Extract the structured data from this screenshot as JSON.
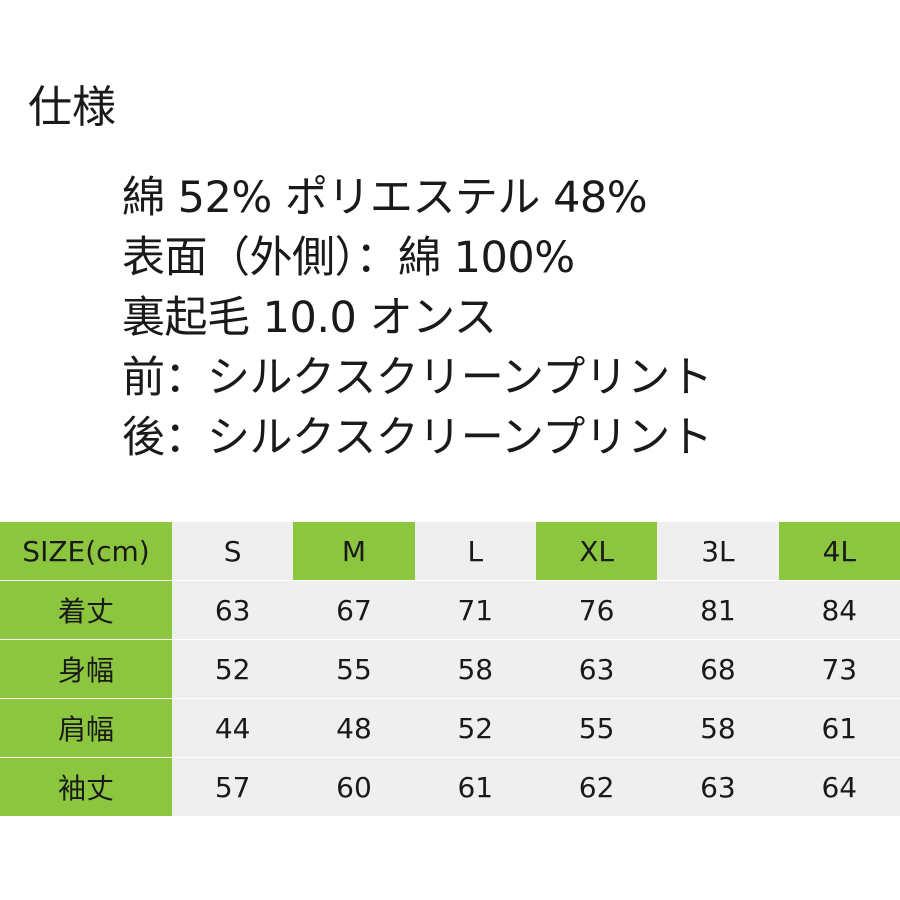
{
  "heading": "仕様",
  "specs": [
    "綿 52% ポリエステル 48%",
    "表面（外側）：綿 100%",
    "裏起毛 10.0 オンス",
    "前：シルクスクリーンプリント",
    "後：シルクスクリーンプリント"
  ],
  "colors": {
    "accent_green": "#8cc63f",
    "alt_gray": "#efefef"
  },
  "size_table": {
    "header_label": "SIZE(cm)",
    "sizes": [
      "S",
      "M",
      "L",
      "XL",
      "3L",
      "4L"
    ],
    "rows": [
      {
        "label": "着丈",
        "values": [
          "63",
          "67",
          "71",
          "76",
          "81",
          "84"
        ]
      },
      {
        "label": "身幅",
        "values": [
          "52",
          "55",
          "58",
          "63",
          "68",
          "73"
        ]
      },
      {
        "label": "肩幅",
        "values": [
          "44",
          "48",
          "52",
          "55",
          "58",
          "61"
        ]
      },
      {
        "label": "袖丈",
        "values": [
          "57",
          "60",
          "61",
          "62",
          "63",
          "64"
        ]
      }
    ]
  }
}
